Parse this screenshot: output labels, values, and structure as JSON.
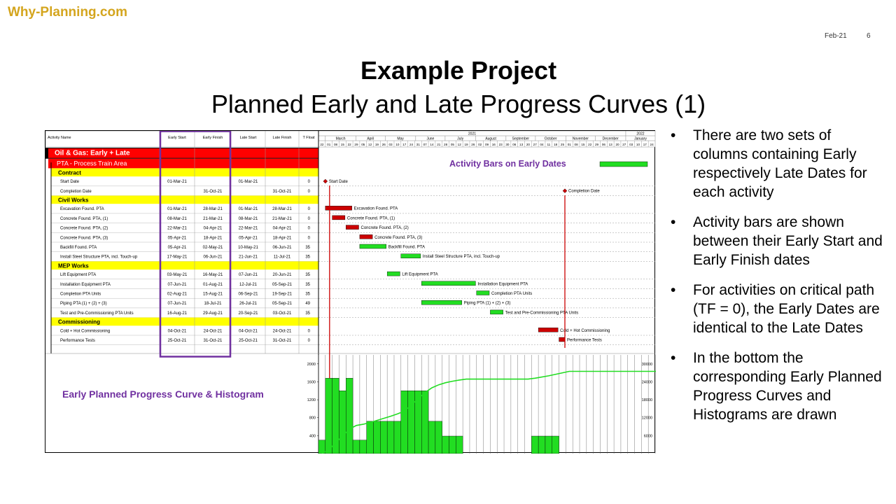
{
  "brand": "Why-Planning.com",
  "date": "Feb-21",
  "page_number": "6",
  "title": "Example Project",
  "subtitle": "Planned Early and Late Progress Curves (1)",
  "bullets": [
    "There are two sets of columns containing Early respectively Late Dates for each activity",
    "Activity bars are shown between their Early Start and Early Finish dates",
    "For activities on critical path (TF = 0), the Early Dates are identical to the Late Dates",
    "In the bottom the corresponding Early Planned Progress Curves and Histograms are drawn"
  ],
  "colors": {
    "critical": "#cc0000",
    "noncritical": "#22dd22",
    "highlight": "#7030a0",
    "band_black": "#000000",
    "band_red": "#ff0000",
    "band_yellow": "#ffff00"
  },
  "chart_data": {
    "type": "gantt",
    "columns": [
      "Activity Name",
      "Early Start",
      "Early Finish",
      "Late Start",
      "Late Finish",
      "T Float"
    ],
    "timeline": {
      "year_labels": [
        "2021",
        "2022"
      ],
      "months": [
        "March",
        "April",
        "May",
        "June",
        "July",
        "August",
        "September",
        "October",
        "November",
        "December",
        "January"
      ],
      "week_labels": [
        "22",
        "01",
        "08",
        "15",
        "22",
        "29",
        "05",
        "12",
        "19",
        "26",
        "03",
        "10",
        "17",
        "24",
        "31",
        "07",
        "14",
        "21",
        "28",
        "05",
        "12",
        "19",
        "26",
        "02",
        "09",
        "16",
        "23",
        "30",
        "06",
        "13",
        "20",
        "27",
        "04",
        "11",
        "18",
        "25",
        "01",
        "08",
        "15",
        "22",
        "29",
        "06",
        "13",
        "20",
        "27",
        "03",
        "10",
        "17",
        "24"
      ]
    },
    "rows": [
      {
        "kind": "band1",
        "name": "Oil & Gas: Early + Late"
      },
      {
        "kind": "band2",
        "name": "PTA - Process Train Area"
      },
      {
        "kind": "band3",
        "name": "Contract"
      },
      {
        "kind": "act",
        "name": "Start Date",
        "es": "01-Mar-21",
        "ef": "",
        "ls": "01-Mar-21",
        "lf": "",
        "tf": "0",
        "start": "2021-03-01",
        "finish": "2021-03-01",
        "critical": true,
        "milestone": true,
        "label": "Start Date"
      },
      {
        "kind": "act",
        "name": "Completion Date",
        "es": "",
        "ef": "31-Oct-21",
        "ls": "",
        "lf": "31-Oct-21",
        "tf": "0",
        "start": "2021-10-31",
        "finish": "2021-10-31",
        "critical": true,
        "milestone": true,
        "label": "Completion Date"
      },
      {
        "kind": "band3",
        "name": "Civil Works"
      },
      {
        "kind": "act",
        "name": "Excavation Found. PTA",
        "es": "01-Mar-21",
        "ef": "28-Mar-21",
        "ls": "01-Mar-21",
        "lf": "28-Mar-21",
        "tf": "0",
        "start": "2021-03-01",
        "finish": "2021-03-28",
        "critical": true,
        "label": "Excavation Found. PTA"
      },
      {
        "kind": "act",
        "name": "Concrete Found. PTA, (1)",
        "es": "08-Mar-21",
        "ef": "21-Mar-21",
        "ls": "08-Mar-21",
        "lf": "21-Mar-21",
        "tf": "0",
        "start": "2021-03-08",
        "finish": "2021-03-21",
        "critical": true,
        "label": "Concrete Found. PTA, (1)"
      },
      {
        "kind": "act",
        "name": "Concrete Found. PTA, (2)",
        "es": "22-Mar-21",
        "ef": "04-Apr-21",
        "ls": "22-Mar-21",
        "lf": "04-Apr-21",
        "tf": "0",
        "start": "2021-03-22",
        "finish": "2021-04-04",
        "critical": true,
        "label": "Concrete Found. PTA, (2)"
      },
      {
        "kind": "act",
        "name": "Concrete Found. PTA, (3)",
        "es": "05-Apr-21",
        "ef": "18-Apr-21",
        "ls": "05-Apr-21",
        "lf": "18-Apr-21",
        "tf": "0",
        "start": "2021-04-05",
        "finish": "2021-04-18",
        "critical": true,
        "label": "Concrete Found. PTA, (3)"
      },
      {
        "kind": "act",
        "name": "Backfill Found. PTA",
        "es": "05-Apr-21",
        "ef": "02-May-21",
        "ls": "10-May-21",
        "lf": "06-Jun-21",
        "tf": "35",
        "start": "2021-04-05",
        "finish": "2021-05-02",
        "critical": false,
        "label": "Backfill Found. PTA"
      },
      {
        "kind": "act",
        "name": "Install Steel Structure PTA, incl. Touch-up",
        "es": "17-May-21",
        "ef": "06-Jun-21",
        "ls": "21-Jun-21",
        "lf": "11-Jul-21",
        "tf": "35",
        "start": "2021-05-17",
        "finish": "2021-06-06",
        "critical": false,
        "label": "Install Steel Structure PTA, incl. Touch-up"
      },
      {
        "kind": "band3",
        "name": "MEP Works"
      },
      {
        "kind": "act",
        "name": "Lift Equipment PTA",
        "es": "03-May-21",
        "ef": "16-May-21",
        "ls": "07-Jun-21",
        "lf": "20-Jun-21",
        "tf": "35",
        "start": "2021-05-03",
        "finish": "2021-05-16",
        "critical": false,
        "label": "Lift Equipment PTA"
      },
      {
        "kind": "act",
        "name": "Installation Equipment PTA",
        "es": "07-Jun-21",
        "ef": "01-Aug-21",
        "ls": "12-Jul-21",
        "lf": "05-Sep-21",
        "tf": "35",
        "start": "2021-06-07",
        "finish": "2021-08-01",
        "critical": false,
        "label": "Installation Equipment PTA"
      },
      {
        "kind": "act",
        "name": "Completion PTA Units",
        "es": "02-Aug-21",
        "ef": "15-Aug-21",
        "ls": "06-Sep-21",
        "lf": "19-Sep-21",
        "tf": "35",
        "start": "2021-08-02",
        "finish": "2021-08-15",
        "critical": false,
        "label": "Completion PTA Units"
      },
      {
        "kind": "act",
        "name": "Piping PTA (1) + (2) + (3)",
        "es": "07-Jun-21",
        "ef": "18-Jul-21",
        "ls": "26-Jul-21",
        "lf": "05-Sep-21",
        "tf": "49",
        "start": "2021-06-07",
        "finish": "2021-07-18",
        "critical": false,
        "label": "Piping PTA (1) + (2) + (3)"
      },
      {
        "kind": "act",
        "name": "Test and Pre-Commissioning PTA Units",
        "es": "16-Aug-21",
        "ef": "29-Aug-21",
        "ls": "20-Sep-21",
        "lf": "03-Oct-21",
        "tf": "35",
        "start": "2021-08-16",
        "finish": "2021-08-29",
        "critical": false,
        "label": "Test and Pre-Commissioning PTA Units"
      },
      {
        "kind": "band3",
        "name": "Commissioning"
      },
      {
        "kind": "act",
        "name": "Cold + Hot Commissioning",
        "es": "04-Oct-21",
        "ef": "24-Oct-21",
        "ls": "04-Oct-21",
        "lf": "24-Oct-21",
        "tf": "0",
        "start": "2021-10-04",
        "finish": "2021-10-24",
        "critical": true,
        "label": "Cold + Hot Commissioning"
      },
      {
        "kind": "act",
        "name": "Performance Tests",
        "es": "25-Oct-21",
        "ef": "31-Oct-21",
        "ls": "25-Oct-21",
        "lf": "31-Oct-21",
        "tf": "0",
        "start": "2021-10-25",
        "finish": "2021-10-31",
        "critical": true,
        "label": "Performance Tests"
      }
    ],
    "legend_bar_label": "Activity Bars on Early Dates",
    "histogram": {
      "title": "Early Planned Progress Curve & Histogram",
      "left_axis": {
        "ticks": [
          "2000",
          "1600",
          "1200",
          "800",
          "400"
        ],
        "max": 2200
      },
      "right_axis": {
        "ticks": [
          "30000",
          "24000",
          "18000",
          "12000",
          "6000"
        ],
        "max": 33000
      },
      "week_values": [
        300,
        1680,
        1680,
        1400,
        1680,
        300,
        300,
        720,
        720,
        720,
        720,
        720,
        1400,
        1400,
        1400,
        1400,
        720,
        720,
        390,
        390,
        390,
        0,
        0,
        0,
        0,
        0,
        0,
        0,
        0,
        0,
        0,
        0,
        0,
        0,
        0,
        0,
        0,
        0,
        0,
        0,
        0,
        0,
        0,
        0,
        0,
        0,
        0,
        0,
        0
      ],
      "value_overrides": {
        "31": 390,
        "32": 390,
        "33": 390,
        "34": 390
      },
      "cumulative_curve": [
        [
          0,
          0
        ],
        [
          1,
          1200
        ],
        [
          2,
          3600
        ],
        [
          3,
          6000
        ],
        [
          4,
          8200
        ],
        [
          5,
          9400
        ],
        [
          6,
          9800
        ],
        [
          7,
          10400
        ],
        [
          8,
          11100
        ],
        [
          9,
          11800
        ],
        [
          10,
          12500
        ],
        [
          11,
          13300
        ],
        [
          12,
          14200
        ],
        [
          13,
          16200
        ],
        [
          14,
          18400
        ],
        [
          15,
          20400
        ],
        [
          16,
          22000
        ],
        [
          17,
          23000
        ],
        [
          18,
          23700
        ],
        [
          19,
          24200
        ],
        [
          20,
          24600
        ],
        [
          21,
          24900
        ],
        [
          24,
          24900
        ],
        [
          27,
          24900
        ],
        [
          30,
          24900
        ],
        [
          31,
          25200
        ],
        [
          33,
          26000
        ],
        [
          35,
          27000
        ],
        [
          36,
          27500
        ],
        [
          49,
          27500
        ]
      ]
    }
  }
}
